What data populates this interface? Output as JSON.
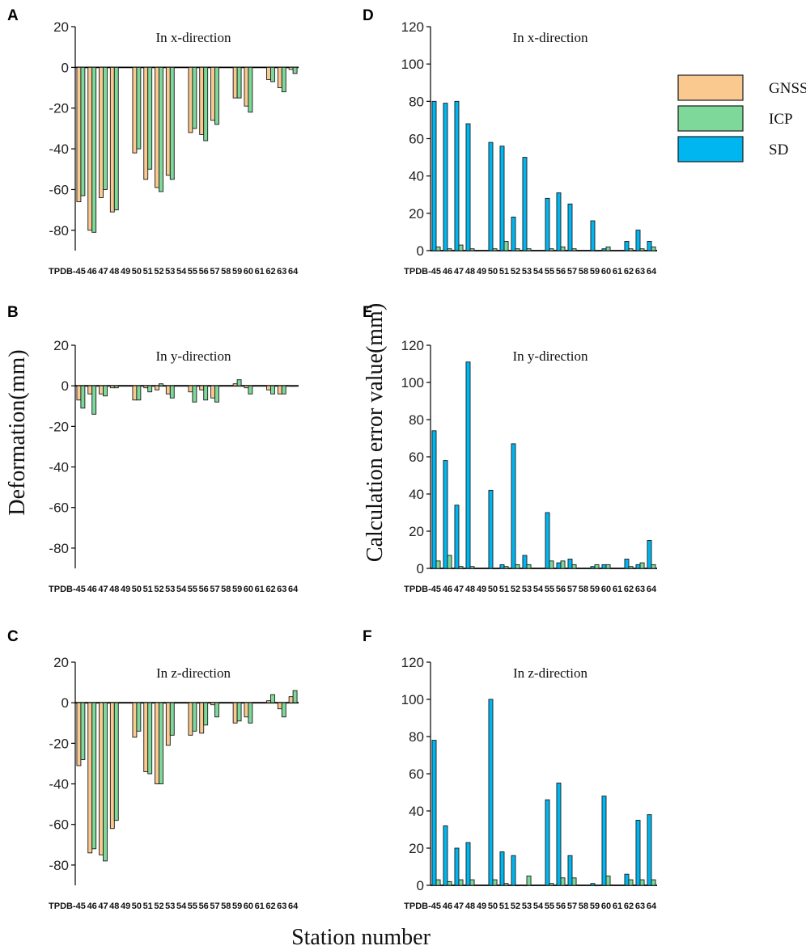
{
  "colors": {
    "GNSS": "#f9c98f",
    "ICP": "#7dd89a",
    "SD": "#00b6f0",
    "highlight_label": "#e0151c",
    "label": "#111111"
  },
  "figure": {
    "ylabel_left": "Deformation(mm)",
    "ylabel_right": "Calculation error value(mm)",
    "xlabel": "Station number"
  },
  "legend": {
    "items": [
      {
        "name": "GNSS",
        "color_key": "GNSS"
      },
      {
        "name": "ICP",
        "color_key": "ICP"
      },
      {
        "name": "SD",
        "color_key": "SD"
      }
    ]
  },
  "chart_data": [
    {
      "panel": "A",
      "title": "In x-direction",
      "type": "bar",
      "ylim": [
        -90,
        20
      ],
      "yticks": [
        20,
        0,
        -20,
        -40,
        -60,
        -80
      ],
      "categories": [
        "TPDB-45",
        "46",
        "47",
        "48",
        "49",
        "50",
        "51",
        "52",
        "53",
        "54",
        "55",
        "56",
        "57",
        "58",
        "59",
        "60",
        "61",
        "62",
        "63",
        "64"
      ],
      "highlighted": [
        "49",
        "54",
        "58",
        "61"
      ],
      "series": [
        {
          "name": "GNSS",
          "values": [
            -66,
            -80,
            -64,
            -71,
            null,
            -42,
            -55,
            -59,
            -53,
            null,
            -32,
            -33,
            -26,
            null,
            -15,
            -19,
            null,
            -6,
            -10,
            -1
          ]
        },
        {
          "name": "ICP",
          "values": [
            -63,
            -81,
            -60,
            -70,
            null,
            -40,
            -50,
            -61,
            -55,
            null,
            -30,
            -36,
            -28,
            null,
            -15,
            -22,
            null,
            -7,
            -12,
            -3
          ]
        }
      ]
    },
    {
      "panel": "B",
      "title": "In y-direction",
      "type": "bar",
      "ylim": [
        -90,
        20
      ],
      "yticks": [
        20,
        0,
        -20,
        -40,
        -60,
        -80
      ],
      "categories": [
        "TPDB-45",
        "46",
        "47",
        "48",
        "49",
        "50",
        "51",
        "52",
        "53",
        "54",
        "55",
        "56",
        "57",
        "58",
        "59",
        "60",
        "61",
        "62",
        "63",
        "64"
      ],
      "highlighted": [
        "49",
        "54",
        "58",
        "61"
      ],
      "series": [
        {
          "name": "GNSS",
          "values": [
            -7,
            -4,
            -4,
            -1,
            null,
            -7,
            -1,
            -2,
            -4,
            null,
            -3,
            -2,
            -6,
            null,
            1,
            -1,
            null,
            -2,
            -4,
            0
          ]
        },
        {
          "name": "ICP",
          "values": [
            -11,
            -14,
            -5,
            -1,
            null,
            -7,
            -3,
            1,
            -6,
            null,
            -8,
            -7,
            -8,
            null,
            3,
            -4,
            null,
            -4,
            -4,
            0
          ]
        }
      ]
    },
    {
      "panel": "C",
      "title": "In z-direction",
      "type": "bar",
      "ylim": [
        -90,
        20
      ],
      "yticks": [
        20,
        0,
        -20,
        -40,
        -60,
        -80
      ],
      "categories": [
        "TPDB-45",
        "46",
        "47",
        "48",
        "49",
        "50",
        "51",
        "52",
        "53",
        "54",
        "55",
        "56",
        "57",
        "58",
        "59",
        "60",
        "61",
        "62",
        "63",
        "64"
      ],
      "highlighted": [
        "49",
        "54",
        "58",
        "61"
      ],
      "series": [
        {
          "name": "GNSS",
          "values": [
            -31,
            -74,
            -75,
            -62,
            null,
            -17,
            -34,
            -40,
            -21,
            null,
            -16,
            -15,
            -1,
            null,
            -10,
            -7,
            null,
            1,
            -3,
            3
          ]
        },
        {
          "name": "ICP",
          "values": [
            -28,
            -72,
            -78,
            -58,
            null,
            -14,
            -35,
            -40,
            -16,
            null,
            -14,
            -11,
            -7,
            null,
            -9,
            -10,
            null,
            4,
            -7,
            6
          ]
        }
      ]
    },
    {
      "panel": "D",
      "title": "In x-direction",
      "type": "bar",
      "ylim": [
        0,
        120
      ],
      "yticks": [
        0,
        20,
        40,
        60,
        80,
        100,
        120
      ],
      "categories": [
        "TPDB-45",
        "46",
        "47",
        "48",
        "49",
        "50",
        "51",
        "52",
        "53",
        "54",
        "55",
        "56",
        "57",
        "58",
        "59",
        "60",
        "61",
        "62",
        "63",
        "64"
      ],
      "highlighted": [
        "49",
        "54",
        "58",
        "61"
      ],
      "series": [
        {
          "name": "SD",
          "values": [
            80,
            79,
            80,
            68,
            null,
            58,
            56,
            18,
            50,
            null,
            28,
            31,
            25,
            null,
            16,
            1,
            null,
            5,
            11,
            5
          ]
        },
        {
          "name": "ICP",
          "values": [
            2,
            1,
            3,
            1,
            null,
            1,
            5,
            1,
            1,
            null,
            1,
            2,
            1,
            null,
            0,
            2,
            null,
            1,
            1,
            2
          ]
        }
      ]
    },
    {
      "panel": "E",
      "title": "In y-direction",
      "type": "bar",
      "ylim": [
        0,
        120
      ],
      "yticks": [
        0,
        20,
        40,
        60,
        80,
        100,
        120
      ],
      "categories": [
        "TPDB-45",
        "46",
        "47",
        "48",
        "49",
        "50",
        "51",
        "52",
        "53",
        "54",
        "55",
        "56",
        "57",
        "58",
        "59",
        "60",
        "61",
        "62",
        "63",
        "64"
      ],
      "highlighted": [
        "49",
        "54",
        "58",
        "61"
      ],
      "series": [
        {
          "name": "SD",
          "values": [
            74,
            58,
            34,
            111,
            null,
            42,
            2,
            67,
            7,
            null,
            30,
            3,
            5,
            null,
            1,
            2,
            null,
            5,
            2,
            15
          ]
        },
        {
          "name": "ICP",
          "values": [
            4,
            7,
            1,
            1,
            null,
            0,
            1,
            2,
            2,
            null,
            4,
            4,
            2,
            null,
            2,
            2,
            null,
            1,
            3,
            2
          ]
        }
      ]
    },
    {
      "panel": "F",
      "title": "In z-direction",
      "type": "bar",
      "ylim": [
        0,
        120
      ],
      "yticks": [
        0,
        20,
        40,
        60,
        80,
        100,
        120
      ],
      "categories": [
        "TPDB-45",
        "46",
        "47",
        "48",
        "49",
        "50",
        "51",
        "52",
        "53",
        "54",
        "55",
        "56",
        "57",
        "58",
        "59",
        "60",
        "61",
        "62",
        "63",
        "64"
      ],
      "highlighted": [
        "49",
        "54",
        "58",
        "61"
      ],
      "series": [
        {
          "name": "SD",
          "values": [
            78,
            32,
            20,
            23,
            null,
            100,
            18,
            16,
            0,
            null,
            46,
            55,
            16,
            null,
            1,
            48,
            null,
            6,
            35,
            38
          ]
        },
        {
          "name": "ICP",
          "values": [
            3,
            2,
            3,
            3,
            null,
            3,
            1,
            0,
            5,
            null,
            1,
            4,
            4,
            null,
            0,
            5,
            null,
            3,
            3,
            3
          ]
        }
      ]
    }
  ]
}
